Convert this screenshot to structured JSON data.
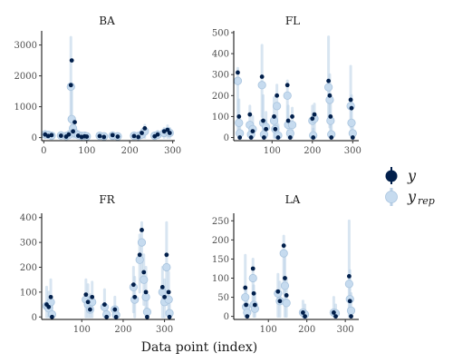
{
  "chart_data": {
    "type": "scatter",
    "xlabel": "Data point (index)",
    "legend": {
      "placement": "right",
      "items": [
        {
          "symbol": "y",
          "subscript": "",
          "color": "#011f4b"
        },
        {
          "symbol": "y",
          "subscript": "rep",
          "color": "#c6dbef"
        }
      ]
    },
    "colors": {
      "y": "#011f4b",
      "yrep_point": "#c6dbef",
      "yrep_line": "#b8cfe6"
    },
    "panels": [
      {
        "title": "BA",
        "xlim": [
          -5,
          305
        ],
        "ylim": [
          -100,
          3400
        ],
        "xticks": [
          0,
          100,
          200,
          300
        ],
        "yticks": [
          0,
          1000,
          2000,
          3000
        ],
        "points": [
          {
            "x": 3,
            "y": 100,
            "rep": 100,
            "lo": 0,
            "hi": 200
          },
          {
            "x": 10,
            "y": 50,
            "rep": 90,
            "lo": 0,
            "hi": 180
          },
          {
            "x": 18,
            "y": 80,
            "rep": 60,
            "lo": 0,
            "hi": 150
          },
          {
            "x": 40,
            "y": 60,
            "rep": 70,
            "lo": 0,
            "hi": 160
          },
          {
            "x": 52,
            "y": 30,
            "rep": 50,
            "lo": 0,
            "hi": 120
          },
          {
            "x": 58,
            "y": 100,
            "rep": 80,
            "lo": 0,
            "hi": 200
          },
          {
            "x": 63,
            "y": 1700,
            "rep": 1650,
            "lo": 500,
            "hi": 3250
          },
          {
            "x": 65,
            "y": 2500,
            "rep": 600,
            "lo": 100,
            "hi": 1500
          },
          {
            "x": 68,
            "y": 200,
            "rep": 300,
            "lo": 0,
            "hi": 600
          },
          {
            "x": 72,
            "y": 500,
            "rep": 150,
            "lo": 0,
            "hi": 400
          },
          {
            "x": 80,
            "y": 60,
            "rep": 80,
            "lo": 0,
            "hi": 200
          },
          {
            "x": 88,
            "y": 20,
            "rep": 50,
            "lo": 0,
            "hi": 150
          },
          {
            "x": 95,
            "y": 40,
            "rep": 60,
            "lo": 0,
            "hi": 150
          },
          {
            "x": 100,
            "y": 30,
            "rep": 40,
            "lo": 0,
            "hi": 120
          },
          {
            "x": 130,
            "y": 50,
            "rep": 60,
            "lo": 0,
            "hi": 150
          },
          {
            "x": 140,
            "y": 20,
            "rep": 40,
            "lo": 0,
            "hi": 100
          },
          {
            "x": 160,
            "y": 80,
            "rep": 60,
            "lo": 0,
            "hi": 160
          },
          {
            "x": 172,
            "y": 30,
            "rep": 40,
            "lo": 0,
            "hi": 120
          },
          {
            "x": 210,
            "y": 50,
            "rep": 60,
            "lo": 0,
            "hi": 150
          },
          {
            "x": 220,
            "y": 20,
            "rep": 50,
            "lo": 0,
            "hi": 140
          },
          {
            "x": 228,
            "y": 150,
            "rep": 100,
            "lo": 0,
            "hi": 250
          },
          {
            "x": 235,
            "y": 300,
            "rep": 200,
            "lo": 0,
            "hi": 400
          },
          {
            "x": 258,
            "y": 40,
            "rep": 60,
            "lo": 0,
            "hi": 150
          },
          {
            "x": 265,
            "y": 100,
            "rep": 90,
            "lo": 0,
            "hi": 200
          },
          {
            "x": 280,
            "y": 200,
            "rep": 150,
            "lo": 0,
            "hi": 300
          },
          {
            "x": 288,
            "y": 250,
            "rep": 200,
            "lo": 0,
            "hi": 380
          },
          {
            "x": 293,
            "y": 150,
            "rep": 150,
            "lo": 0,
            "hi": 300
          }
        ]
      },
      {
        "title": "FL",
        "xlim": [
          5,
          315
        ],
        "ylim": [
          -15,
          500
        ],
        "xticks": [
          100,
          200,
          300
        ],
        "yticks": [
          0,
          100,
          200,
          300,
          400,
          500
        ],
        "points": [
          {
            "x": 15,
            "y": 310,
            "rep": 270,
            "lo": 40,
            "hi": 330
          },
          {
            "x": 18,
            "y": 100,
            "rep": 70,
            "lo": 0,
            "hi": 180
          },
          {
            "x": 20,
            "y": 0,
            "rep": 20,
            "lo": 0,
            "hi": 80
          },
          {
            "x": 45,
            "y": 110,
            "rep": 60,
            "lo": 0,
            "hi": 150
          },
          {
            "x": 48,
            "y": 0,
            "rep": 15,
            "lo": 0,
            "hi": 70
          },
          {
            "x": 52,
            "y": 30,
            "rep": 40,
            "lo": 0,
            "hi": 100
          },
          {
            "x": 75,
            "y": 290,
            "rep": 250,
            "lo": 100,
            "hi": 440
          },
          {
            "x": 78,
            "y": 80,
            "rep": 70,
            "lo": 0,
            "hi": 200
          },
          {
            "x": 80,
            "y": 0,
            "rep": 15,
            "lo": 0,
            "hi": 60
          },
          {
            "x": 85,
            "y": 40,
            "rep": 50,
            "lo": 0,
            "hi": 120
          },
          {
            "x": 105,
            "y": 100,
            "rep": 80,
            "lo": 0,
            "hi": 190
          },
          {
            "x": 108,
            "y": 40,
            "rep": 40,
            "lo": 0,
            "hi": 100
          },
          {
            "x": 112,
            "y": 200,
            "rep": 150,
            "lo": 30,
            "hi": 250
          },
          {
            "x": 115,
            "y": 0,
            "rep": 10,
            "lo": 0,
            "hi": 60
          },
          {
            "x": 138,
            "y": 250,
            "rep": 200,
            "lo": 50,
            "hi": 270
          },
          {
            "x": 140,
            "y": 80,
            "rep": 60,
            "lo": 0,
            "hi": 150
          },
          {
            "x": 145,
            "y": 0,
            "rep": 20,
            "lo": 0,
            "hi": 60
          },
          {
            "x": 150,
            "y": 100,
            "rep": 60,
            "lo": 0,
            "hi": 140
          },
          {
            "x": 200,
            "y": 90,
            "rep": 80,
            "lo": 0,
            "hi": 150
          },
          {
            "x": 202,
            "y": 0,
            "rep": 10,
            "lo": 0,
            "hi": 40
          },
          {
            "x": 205,
            "y": 110,
            "rep": 90,
            "lo": 0,
            "hi": 160
          },
          {
            "x": 240,
            "y": 270,
            "rep": 240,
            "lo": 80,
            "hi": 480
          },
          {
            "x": 243,
            "y": 200,
            "rep": 180,
            "lo": 50,
            "hi": 300
          },
          {
            "x": 245,
            "y": 100,
            "rep": 80,
            "lo": 0,
            "hi": 160
          },
          {
            "x": 247,
            "y": 0,
            "rep": 15,
            "lo": 0,
            "hi": 60
          },
          {
            "x": 295,
            "y": 180,
            "rep": 150,
            "lo": 50,
            "hi": 340
          },
          {
            "x": 297,
            "y": 140,
            "rep": 70,
            "lo": 0,
            "hi": 200
          },
          {
            "x": 300,
            "y": 0,
            "rep": 20,
            "lo": 0,
            "hi": 80
          }
        ]
      },
      {
        "title": "FR",
        "xlim": [
          3,
          325
        ],
        "ylim": [
          -10,
          410
        ],
        "xticks": [
          100,
          200,
          300
        ],
        "yticks": [
          0,
          100,
          200,
          300,
          400
        ],
        "points": [
          {
            "x": 15,
            "y": 50,
            "rep": 45,
            "lo": 0,
            "hi": 120
          },
          {
            "x": 20,
            "y": 40,
            "rep": 35,
            "lo": 0,
            "hi": 100
          },
          {
            "x": 25,
            "y": 80,
            "rep": 60,
            "lo": 0,
            "hi": 150
          },
          {
            "x": 28,
            "y": 0,
            "rep": 10,
            "lo": 0,
            "hi": 50
          },
          {
            "x": 110,
            "y": 90,
            "rep": 70,
            "lo": 0,
            "hi": 150
          },
          {
            "x": 115,
            "y": 60,
            "rep": 50,
            "lo": 0,
            "hi": 130
          },
          {
            "x": 120,
            "y": 30,
            "rep": 30,
            "lo": 0,
            "hi": 90
          },
          {
            "x": 125,
            "y": 80,
            "rep": 60,
            "lo": 0,
            "hi": 140
          },
          {
            "x": 155,
            "y": 50,
            "rep": 40,
            "lo": 0,
            "hi": 110
          },
          {
            "x": 160,
            "y": 0,
            "rep": 10,
            "lo": 0,
            "hi": 40
          },
          {
            "x": 180,
            "y": 30,
            "rep": 30,
            "lo": 0,
            "hi": 80
          },
          {
            "x": 183,
            "y": 0,
            "rep": 8,
            "lo": 0,
            "hi": 40
          },
          {
            "x": 225,
            "y": 130,
            "rep": 120,
            "lo": 20,
            "hi": 200
          },
          {
            "x": 228,
            "y": 80,
            "rep": 70,
            "lo": 0,
            "hi": 160
          },
          {
            "x": 240,
            "y": 250,
            "rep": 230,
            "lo": 100,
            "hi": 330
          },
          {
            "x": 245,
            "y": 350,
            "rep": 300,
            "lo": 150,
            "hi": 380
          },
          {
            "x": 250,
            "y": 180,
            "rep": 150,
            "lo": 50,
            "hi": 250
          },
          {
            "x": 255,
            "y": 100,
            "rep": 80,
            "lo": 0,
            "hi": 200
          },
          {
            "x": 258,
            "y": 0,
            "rep": 20,
            "lo": 0,
            "hi": 70
          },
          {
            "x": 295,
            "y": 120,
            "rep": 100,
            "lo": 0,
            "hi": 200
          },
          {
            "x": 300,
            "y": 80,
            "rep": 60,
            "lo": 0,
            "hi": 150
          },
          {
            "x": 305,
            "y": 250,
            "rep": 200,
            "lo": 50,
            "hi": 380
          },
          {
            "x": 310,
            "y": 100,
            "rep": 70,
            "lo": 0,
            "hi": 180
          },
          {
            "x": 312,
            "y": 0,
            "rep": 15,
            "lo": 0,
            "hi": 50
          }
        ]
      },
      {
        "title": "LA",
        "xlim": [
          10,
          335
        ],
        "ylim": [
          -8,
          265
        ],
        "xticks": [
          100,
          200,
          300
        ],
        "yticks": [
          0,
          50,
          100,
          150,
          200,
          250
        ],
        "points": [
          {
            "x": 40,
            "y": 75,
            "rep": 50,
            "lo": 0,
            "hi": 160
          },
          {
            "x": 42,
            "y": 30,
            "rep": 25,
            "lo": 0,
            "hi": 70
          },
          {
            "x": 45,
            "y": 0,
            "rep": 10,
            "lo": 0,
            "hi": 40
          },
          {
            "x": 60,
            "y": 125,
            "rep": 100,
            "lo": 20,
            "hi": 150
          },
          {
            "x": 62,
            "y": 60,
            "rep": 30,
            "lo": 0,
            "hi": 80
          },
          {
            "x": 65,
            "y": 30,
            "rep": 20,
            "lo": 0,
            "hi": 60
          },
          {
            "x": 125,
            "y": 65,
            "rep": 60,
            "lo": 0,
            "hi": 110
          },
          {
            "x": 130,
            "y": 40,
            "rep": 40,
            "lo": 0,
            "hi": 90
          },
          {
            "x": 140,
            "y": 185,
            "rep": 165,
            "lo": 60,
            "hi": 210
          },
          {
            "x": 143,
            "y": 100,
            "rep": 80,
            "lo": 0,
            "hi": 160
          },
          {
            "x": 147,
            "y": 55,
            "rep": 35,
            "lo": 0,
            "hi": 100
          },
          {
            "x": 190,
            "y": 10,
            "rep": 10,
            "lo": 0,
            "hi": 40
          },
          {
            "x": 195,
            "y": 0,
            "rep": 5,
            "lo": 0,
            "hi": 30
          },
          {
            "x": 270,
            "y": 10,
            "rep": 10,
            "lo": 0,
            "hi": 50
          },
          {
            "x": 275,
            "y": 0,
            "rep": 8,
            "lo": 0,
            "hi": 30
          },
          {
            "x": 310,
            "y": 105,
            "rep": 85,
            "lo": 0,
            "hi": 250
          },
          {
            "x": 312,
            "y": 40,
            "rep": 45,
            "lo": 0,
            "hi": 120
          },
          {
            "x": 315,
            "y": 0,
            "rep": 15,
            "lo": 0,
            "hi": 60
          }
        ]
      }
    ]
  }
}
